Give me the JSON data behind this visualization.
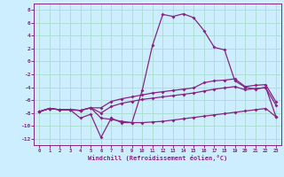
{
  "xlabel": "Windchill (Refroidissement éolien,°C)",
  "background_color": "#cceeff",
  "grid_color": "#aaddcc",
  "line_color": "#882288",
  "xlim": [
    -0.5,
    23.5
  ],
  "ylim": [
    -13,
    9
  ],
  "xticks": [
    0,
    1,
    2,
    3,
    4,
    5,
    6,
    7,
    8,
    9,
    10,
    11,
    12,
    13,
    14,
    15,
    16,
    17,
    18,
    19,
    20,
    21,
    22,
    23
  ],
  "yticks": [
    -12,
    -10,
    -8,
    -6,
    -4,
    -2,
    0,
    2,
    4,
    6,
    8
  ],
  "line_bottom_y": [
    -7.8,
    -7.3,
    -7.5,
    -7.5,
    -7.6,
    -7.2,
    -8.8,
    -9.0,
    -9.3,
    -9.5,
    -9.5,
    -9.4,
    -9.3,
    -9.1,
    -8.9,
    -8.7,
    -8.5,
    -8.3,
    -8.1,
    -7.9,
    -7.7,
    -7.5,
    -7.3,
    -8.6
  ],
  "line_mid_y": [
    -7.8,
    -7.3,
    -7.5,
    -7.5,
    -7.6,
    -7.2,
    -8.0,
    -7.0,
    -6.5,
    -6.2,
    -5.9,
    -5.7,
    -5.5,
    -5.3,
    -5.1,
    -4.9,
    -4.6,
    -4.3,
    -4.1,
    -3.9,
    -4.4,
    -4.2,
    -4.1,
    -6.8
  ],
  "line_upper_y": [
    -7.8,
    -7.3,
    -7.5,
    -7.5,
    -7.6,
    -7.2,
    -7.2,
    -6.2,
    -5.8,
    -5.5,
    -5.2,
    -4.9,
    -4.7,
    -4.5,
    -4.3,
    -4.1,
    -3.3,
    -3.0,
    -2.9,
    -2.7,
    -3.9,
    -3.7,
    -3.6,
    -6.3
  ],
  "line_peak_y": [
    -7.8,
    -7.3,
    -7.5,
    -7.5,
    -8.8,
    -8.2,
    -11.8,
    -8.8,
    -9.5,
    -9.5,
    -4.5,
    2.5,
    7.3,
    7.0,
    7.4,
    6.8,
    4.8,
    2.2,
    1.8,
    -3.0,
    -4.0,
    -4.3,
    -4.0,
    -8.6
  ]
}
